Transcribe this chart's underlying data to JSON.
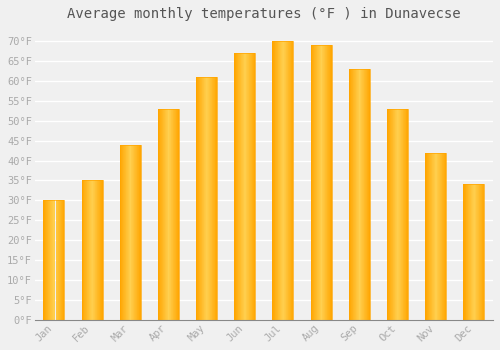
{
  "title": "Average monthly temperatures (°F ) in Dunavecse",
  "months": [
    "Jan",
    "Feb",
    "Mar",
    "Apr",
    "May",
    "Jun",
    "Jul",
    "Aug",
    "Sep",
    "Oct",
    "Nov",
    "Dec"
  ],
  "values": [
    30,
    35,
    44,
    53,
    61,
    67,
    70,
    69,
    63,
    53,
    42,
    34
  ],
  "bar_color_light": "#FFD060",
  "bar_color_dark": "#FFA500",
  "background_color": "#F0F0F0",
  "grid_color": "#FFFFFF",
  "ylim": [
    0,
    73
  ],
  "yticks": [
    0,
    5,
    10,
    15,
    20,
    25,
    30,
    35,
    40,
    45,
    50,
    55,
    60,
    65,
    70
  ],
  "tick_label_color": "#AAAAAA",
  "title_color": "#555555",
  "title_fontsize": 10,
  "font_family": "monospace",
  "bar_width": 0.55
}
